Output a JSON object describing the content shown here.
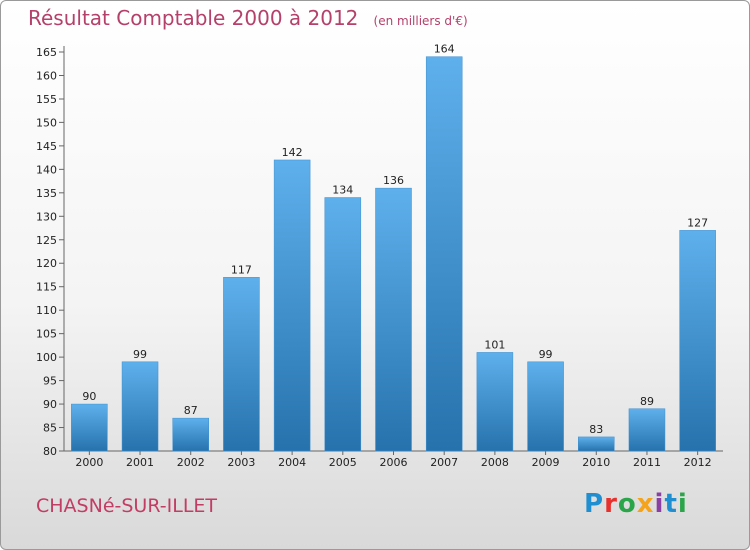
{
  "title": "Résultat Comptable 2000 à 2012",
  "unit": "(en milliers d'€)",
  "city": "CHASNé-SUR-ILLET",
  "logo": {
    "text": "Proxiti",
    "colors": [
      "#1f8fd1",
      "#e8302c",
      "#2aa549",
      "#f5a31a",
      "#8b3fa3",
      "#1f8fd1",
      "#2aa549"
    ]
  },
  "colors": {
    "bar_top": "#5eb0ec",
    "bar_bottom": "#2672ad",
    "title": "#b5406a",
    "city": "#c33c63"
  },
  "chart_data": {
    "type": "bar",
    "title": "Résultat Comptable 2000 à 2012",
    "xlabel": "",
    "ylabel": "",
    "ylim": [
      80,
      165
    ],
    "yticks": [
      80,
      85,
      90,
      95,
      100,
      105,
      110,
      115,
      120,
      125,
      130,
      135,
      140,
      145,
      150,
      155,
      160,
      165
    ],
    "grid": false,
    "categories": [
      "2000",
      "2001",
      "2002",
      "2003",
      "2004",
      "2005",
      "2006",
      "2007",
      "2008",
      "2009",
      "2010",
      "2011",
      "2012"
    ],
    "values": [
      90,
      99,
      87,
      117,
      142,
      134,
      136,
      164,
      101,
      99,
      83,
      89,
      127
    ]
  }
}
